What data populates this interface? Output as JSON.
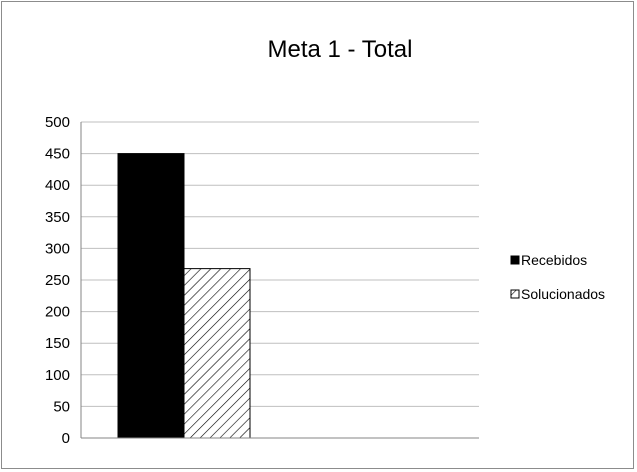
{
  "chart_data": {
    "type": "bar",
    "title": "Meta 1 - Total",
    "xlabel": "",
    "ylabel": "",
    "categories": [
      ""
    ],
    "ylim": [
      0,
      500
    ],
    "yticks": [
      "0",
      "50",
      "100",
      "150",
      "200",
      "250",
      "300",
      "350",
      "400",
      "450",
      "500"
    ],
    "grid": true,
    "legend_position": "right",
    "series": [
      {
        "name": "Recebidos",
        "values": [
          450
        ],
        "color": "#000000",
        "pattern": "solid"
      },
      {
        "name": "Solucionados",
        "values": [
          268
        ],
        "color": "#000000",
        "pattern": "diagonal-hatch"
      }
    ]
  }
}
